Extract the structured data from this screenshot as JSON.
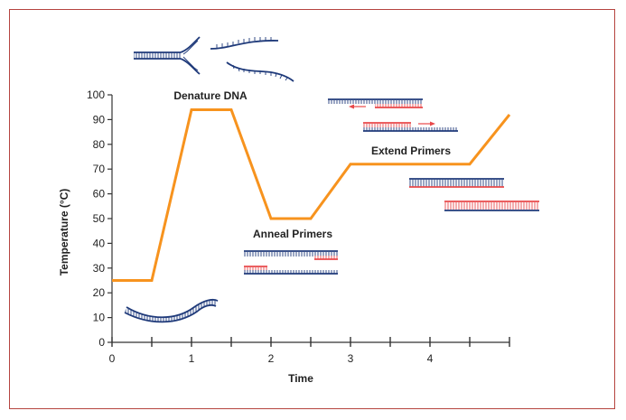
{
  "chart_data": {
    "type": "line",
    "title": "",
    "xlabel": "Time",
    "ylabel": "Temperature (°C)",
    "xlim": [
      0,
      5
    ],
    "ylim": [
      0,
      100
    ],
    "x_ticks": [
      0,
      1,
      2,
      3,
      4
    ],
    "y_ticks": [
      0,
      10,
      20,
      30,
      40,
      50,
      60,
      70,
      80,
      90,
      100
    ],
    "series": [
      {
        "x": [
          0,
          0.5,
          1,
          1.5,
          2,
          2.5,
          3,
          3.5,
          4,
          4.5,
          5
        ],
        "y": [
          25,
          25,
          94,
          94,
          50,
          50,
          72,
          72,
          72,
          72,
          92
        ],
        "color": "#f7931e"
      }
    ],
    "annotations": [
      {
        "id": "denature",
        "label": "Denature DNA"
      },
      {
        "id": "anneal",
        "label": "Anneal Primers"
      },
      {
        "id": "extend",
        "label": "Extend Primers"
      }
    ]
  },
  "colors": {
    "dna_strand": "#1f3a7a",
    "primer": "#e8484a",
    "curve": "#f7931e",
    "frame_border": "#b5443f"
  }
}
